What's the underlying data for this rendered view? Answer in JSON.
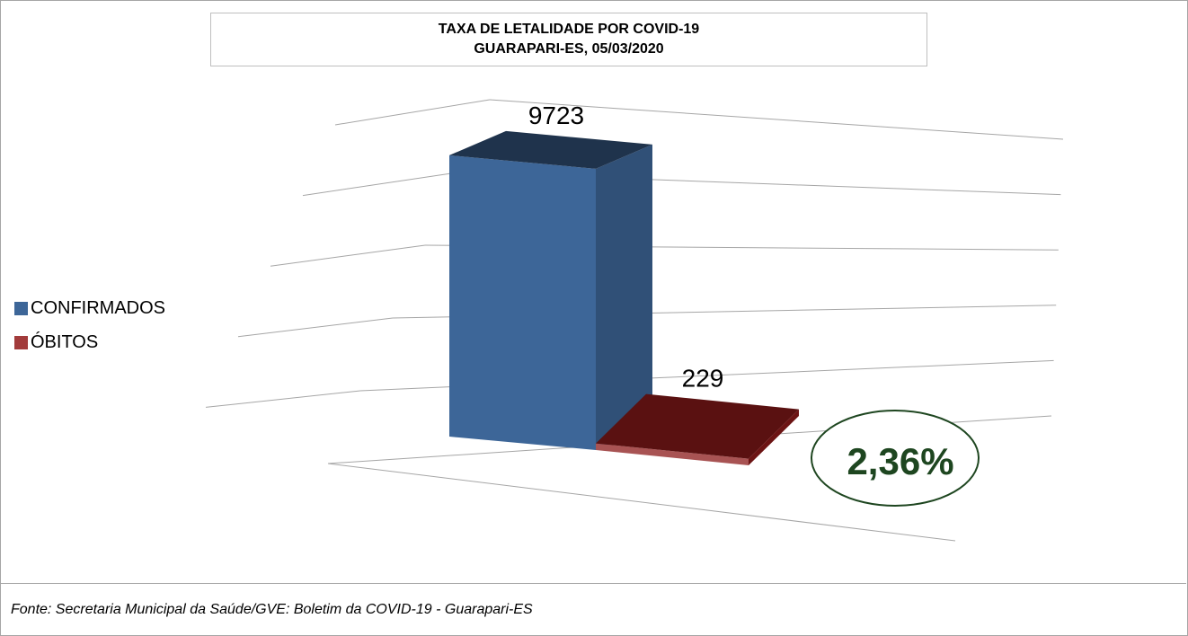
{
  "chart_data": {
    "type": "bar",
    "title": "TAXA DE LETALIDADE POR COVID-19",
    "subtitle": "GUARAPARI-ES, 05/03/2020",
    "categories": [
      "CONFIRMADOS",
      "ÓBITOS"
    ],
    "values": [
      9723,
      229
    ],
    "colors": [
      "#3d6698",
      "#8b1a1a"
    ],
    "ylim": [
      0,
      10000
    ],
    "grid": true,
    "legend_position": "left",
    "style": "3d",
    "annotation": "2,36%",
    "annotation_color": "#1e4620"
  },
  "legend": [
    {
      "label": "CONFIRMADOS",
      "color": "#3d6698"
    },
    {
      "label": "ÓBITOS",
      "color": "#a23b3b"
    }
  ],
  "source": "Fonte: Secretaria Municipal da Saúde/GVE: Boletim da COVID-19 - Guarapari-ES"
}
